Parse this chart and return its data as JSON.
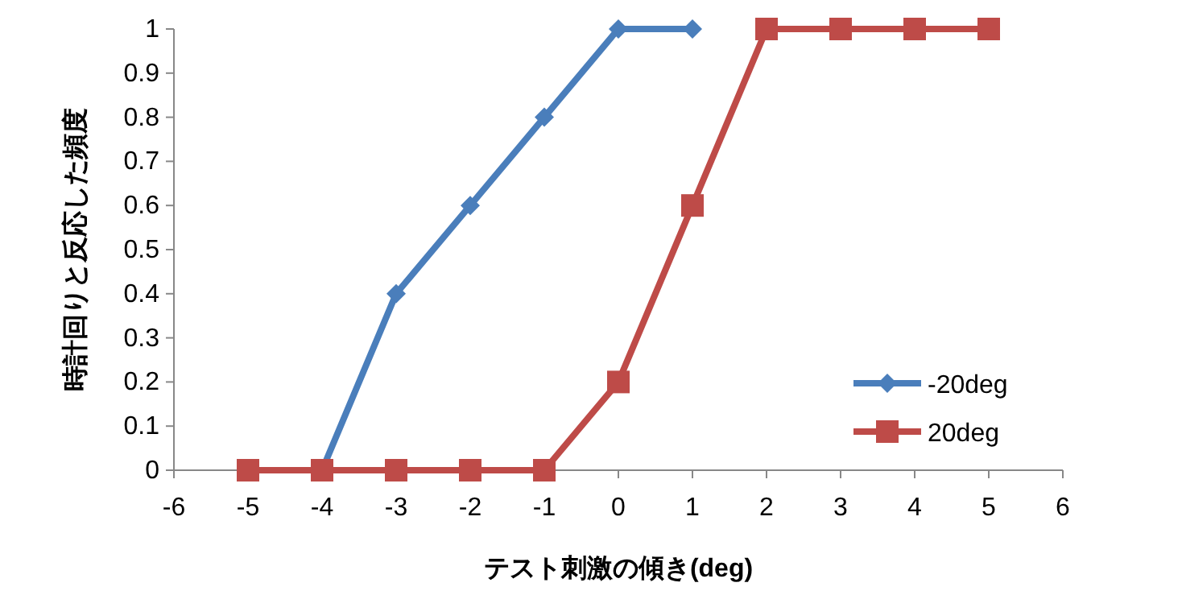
{
  "chart_data": {
    "type": "line",
    "xlabel": "テスト刺激の傾き(deg)",
    "ylabel": "時計回りと反応した頻度",
    "xlim": [
      -6,
      6
    ],
    "xticks": [
      -6,
      -5,
      -4,
      -3,
      -2,
      -1,
      0,
      1,
      2,
      3,
      4,
      5,
      6
    ],
    "ylim": [
      0,
      1
    ],
    "yticks": [
      0,
      0.1,
      0.2,
      0.3,
      0.4,
      0.5,
      0.6,
      0.7,
      0.8,
      0.9,
      1
    ],
    "grid": false,
    "legend": "bottom right",
    "series": [
      {
        "name": "-20deg",
        "color": "#4a7ebb",
        "marker": "diamond",
        "x": [
          -4,
          -3,
          -2,
          -1,
          0,
          1
        ],
        "values": [
          0,
          0.4,
          0.6,
          0.8,
          1,
          1
        ]
      },
      {
        "name": "20deg",
        "color": "#be4b48",
        "marker": "square",
        "x": [
          -5,
          -4,
          -3,
          -2,
          -1,
          0,
          1,
          2,
          3,
          4,
          5
        ],
        "values": [
          0,
          0,
          0,
          0,
          0,
          0.2,
          0.6,
          1,
          1,
          1,
          1
        ]
      }
    ]
  }
}
